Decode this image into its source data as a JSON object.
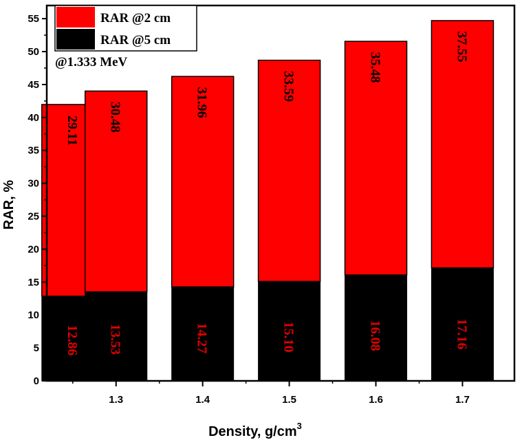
{
  "chart_data": {
    "type": "bar",
    "stacked": true,
    "categories": [
      "1.25",
      "1.3",
      "1.4",
      "1.5",
      "1.6",
      "1.7"
    ],
    "x": [
      1.25,
      1.3,
      1.4,
      1.5,
      1.6,
      1.7
    ],
    "x_ticks": [
      "1.3",
      "1.4",
      "1.5",
      "1.6",
      "1.7"
    ],
    "series": [
      {
        "name": "RAR @5 cm",
        "color": "#000000",
        "label_color": "#e00000",
        "values": [
          12.86,
          13.53,
          14.27,
          15.1,
          16.08,
          17.16
        ],
        "labels": [
          "12.86",
          "13.53",
          "14.27",
          "15.10",
          "16.08",
          "17.16"
        ]
      },
      {
        "name": "RAR @2 cm",
        "color": "#ff0000",
        "label_color": "#000000",
        "values": [
          29.11,
          30.48,
          31.96,
          33.59,
          35.48,
          37.55
        ],
        "labels": [
          "29.11",
          "30.48",
          "31.96",
          "33.59",
          "35.48",
          "37.55"
        ]
      }
    ],
    "xlabel": "Density, g/cm",
    "xlabel_superscript": "3",
    "ylabel": "RAR, %",
    "ylim": [
      0,
      57
    ],
    "xlim": [
      1.22,
      1.76
    ],
    "y_ticks": [
      0,
      5,
      10,
      15,
      20,
      25,
      30,
      35,
      40,
      45,
      50,
      55
    ],
    "annotation": "@1.333 MeV",
    "legend_position": "top-left",
    "grid": false
  }
}
